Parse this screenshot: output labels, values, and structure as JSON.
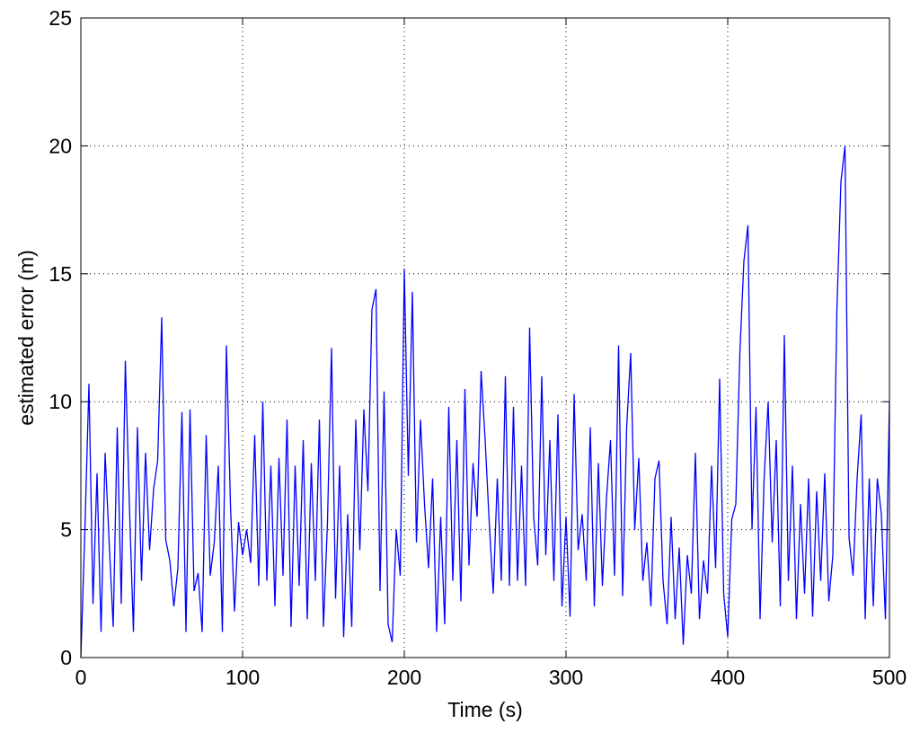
{
  "chart_data": {
    "type": "line",
    "xlabel": "Time (s)",
    "ylabel": "estimated error (m)",
    "x": [
      0,
      2.5,
      5,
      7.5,
      10,
      12.5,
      15,
      17.5,
      20,
      22.5,
      25,
      27.5,
      30,
      32.5,
      35,
      37.5,
      40,
      42.5,
      45,
      47.5,
      50,
      52.5,
      55,
      57.5,
      60,
      62.5,
      65,
      67.5,
      70,
      72.5,
      75,
      77.5,
      80,
      82.5,
      85,
      87.5,
      90,
      92.5,
      95,
      97.5,
      100,
      102.5,
      105,
      107.5,
      110,
      112.5,
      115,
      117.5,
      120,
      122.5,
      125,
      127.5,
      130,
      132.5,
      135,
      137.5,
      140,
      142.5,
      145,
      147.5,
      150,
      152.5,
      155,
      157.5,
      160,
      162.5,
      165,
      167.5,
      170,
      172.5,
      175,
      177.5,
      180,
      182.5,
      185,
      187.5,
      190,
      192.5,
      195,
      197.5,
      200,
      202.5,
      205,
      207.5,
      210,
      212.5,
      215,
      217.5,
      220,
      222.5,
      225,
      227.5,
      230,
      232.5,
      235,
      237.5,
      240,
      242.5,
      245,
      247.5,
      250,
      252.5,
      255,
      257.5,
      260,
      262.5,
      265,
      267.5,
      270,
      272.5,
      275,
      277.5,
      280,
      282.5,
      285,
      287.5,
      290,
      292.5,
      295,
      297.5,
      300,
      302.5,
      305,
      307.5,
      310,
      312.5,
      315,
      317.5,
      320,
      322.5,
      325,
      327.5,
      330,
      332.5,
      335,
      337.5,
      340,
      342.5,
      345,
      347.5,
      350,
      352.5,
      355,
      357.5,
      360,
      362.5,
      365,
      367.5,
      370,
      372.5,
      375,
      377.5,
      380,
      382.5,
      385,
      387.5,
      390,
      392.5,
      395,
      397.5,
      400,
      402.5,
      405,
      407.5,
      410,
      412.5,
      415,
      417.5,
      420,
      422.5,
      425,
      427.5,
      430,
      432.5,
      435,
      437.5,
      440,
      442.5,
      445,
      447.5,
      450,
      452.5,
      455,
      457.5,
      460,
      462.5,
      465,
      467.5,
      470,
      472.5,
      475,
      477.5,
      480,
      482.5,
      485,
      487.5,
      490,
      492.5,
      495,
      497.5,
      500
    ],
    "series": [
      {
        "color": "#0000ff",
        "values": [
          0,
          5,
          10.7,
          2.1,
          7.2,
          1,
          8,
          4.5,
          1.2,
          9,
          2.1,
          11.6,
          6,
          1,
          9,
          3,
          8,
          4.2,
          6.6,
          7.7,
          13.3,
          4.6,
          3.8,
          2,
          3.5,
          9.6,
          1,
          9.7,
          2.6,
          3.3,
          1,
          8.7,
          3.2,
          4.5,
          7.5,
          1,
          12.2,
          6,
          1.8,
          5.3,
          4,
          5,
          3.7,
          8.7,
          2.8,
          10,
          3,
          7.5,
          2,
          7.8,
          3.2,
          9.3,
          1.2,
          7.5,
          2.8,
          8.5,
          1.5,
          7.6,
          3,
          9.3,
          1.2,
          5.3,
          12.1,
          2.3,
          7.5,
          0.8,
          5.6,
          1.2,
          9.3,
          4.2,
          9.7,
          6.5,
          13.6,
          14.4,
          2.6,
          10.4,
          1.3,
          0.6,
          5,
          3.2,
          15.2,
          7.1,
          14.3,
          4.5,
          9.3,
          6,
          3.5,
          7,
          1,
          5.5,
          1.3,
          9.8,
          3,
          8.5,
          2.2,
          10.5,
          3.6,
          7.6,
          5.5,
          11.2,
          8.5,
          5.3,
          2.5,
          7,
          3,
          11,
          2.8,
          9.8,
          3,
          7.5,
          2.8,
          12.9,
          5.5,
          3.6,
          11,
          4,
          8.5,
          3,
          9.5,
          2,
          5.5,
          1.6,
          10.3,
          4.2,
          5.6,
          3,
          9,
          2,
          7.6,
          2.8,
          6.2,
          8.5,
          3.2,
          12.2,
          2.4,
          9,
          11.9,
          5,
          7.8,
          3,
          4.5,
          2,
          7,
          7.7,
          3,
          1.3,
          5.5,
          1.5,
          4.3,
          0.5,
          4,
          2.5,
          8,
          1.5,
          3.8,
          2.5,
          7.5,
          3.5,
          10.9,
          2.5,
          0.8,
          5.4,
          6,
          11.9,
          15.5,
          16.9,
          5,
          9.8,
          1.5,
          7,
          10,
          4.5,
          8.5,
          2,
          12.6,
          3,
          7.5,
          1.5,
          6,
          2.5,
          7,
          1.6,
          6.5,
          3,
          7.2,
          2.2,
          4,
          13.6,
          18.6,
          20,
          4.7,
          3.2,
          7,
          9.5,
          1.5,
          7,
          2,
          7,
          5.6,
          1.5,
          10
        ]
      }
    ],
    "xlim": [
      0,
      500
    ],
    "xticks": [
      0,
      100,
      200,
      300,
      400,
      500
    ],
    "ylim": [
      0,
      25
    ],
    "yticks": [
      0,
      5,
      10,
      15,
      20,
      25
    ],
    "grid": true
  }
}
